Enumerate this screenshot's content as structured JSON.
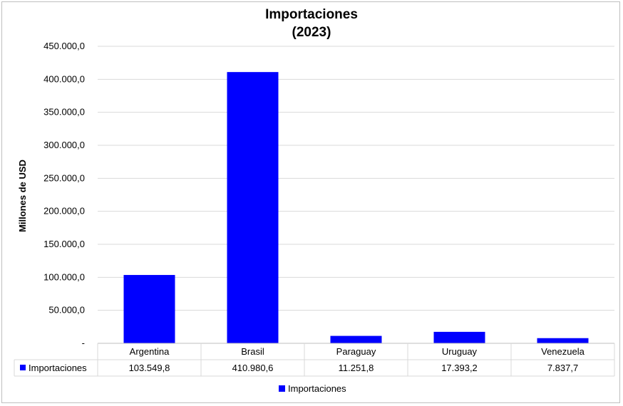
{
  "chart_data": {
    "type": "bar",
    "title": "Importaciones",
    "subtitle": "(2023)",
    "ylabel": "Millones de USD",
    "xlabel": "",
    "ylim": [
      0,
      450000
    ],
    "yticks": [
      "-",
      "50.000,0",
      "100.000,0",
      "150.000,0",
      "200.000,0",
      "250.000,0",
      "300.000,0",
      "350.000,0",
      "400.000,0",
      "450.000,0"
    ],
    "categories": [
      "Argentina",
      "Brasil",
      "Paraguay",
      "Uruguay",
      "Venezuela"
    ],
    "series": [
      {
        "name": "Importaciones",
        "color": "#0000ff",
        "values": [
          103549.8,
          410980.6,
          11251.8,
          17393.2,
          7837.7
        ],
        "labels": [
          "103.549,8",
          "410.980,6",
          "11.251,8",
          "17.393,2",
          "7.837,7"
        ]
      }
    ],
    "grid": true,
    "legend": "bottom",
    "data_table": true
  }
}
